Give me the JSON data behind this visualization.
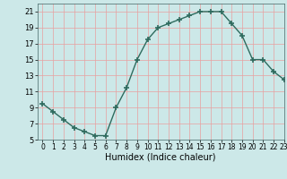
{
  "x": [
    0,
    1,
    2,
    3,
    4,
    5,
    6,
    7,
    8,
    9,
    10,
    11,
    12,
    13,
    14,
    15,
    16,
    17,
    18,
    19,
    20,
    21,
    22,
    23
  ],
  "y": [
    9.5,
    8.5,
    7.5,
    6.5,
    6.0,
    5.5,
    5.5,
    9.0,
    11.5,
    15.0,
    17.5,
    19.0,
    19.5,
    20.0,
    20.5,
    21.0,
    21.0,
    21.0,
    19.5,
    18.0,
    15.0,
    15.0,
    13.5,
    12.5
  ],
  "xlabel": "Humidex (Indice chaleur)",
  "ylim": [
    5,
    22
  ],
  "xlim": [
    -0.5,
    23
  ],
  "yticks": [
    5,
    7,
    9,
    11,
    13,
    15,
    17,
    19,
    21
  ],
  "xticks": [
    0,
    1,
    2,
    3,
    4,
    5,
    6,
    7,
    8,
    9,
    10,
    11,
    12,
    13,
    14,
    15,
    16,
    17,
    18,
    19,
    20,
    21,
    22,
    23
  ],
  "line_color": "#2e6b5e",
  "bg_color": "#cce8e8",
  "grid_color": "#e8a0a0",
  "marker": "+",
  "marker_size": 5,
  "marker_lw": 1.2
}
